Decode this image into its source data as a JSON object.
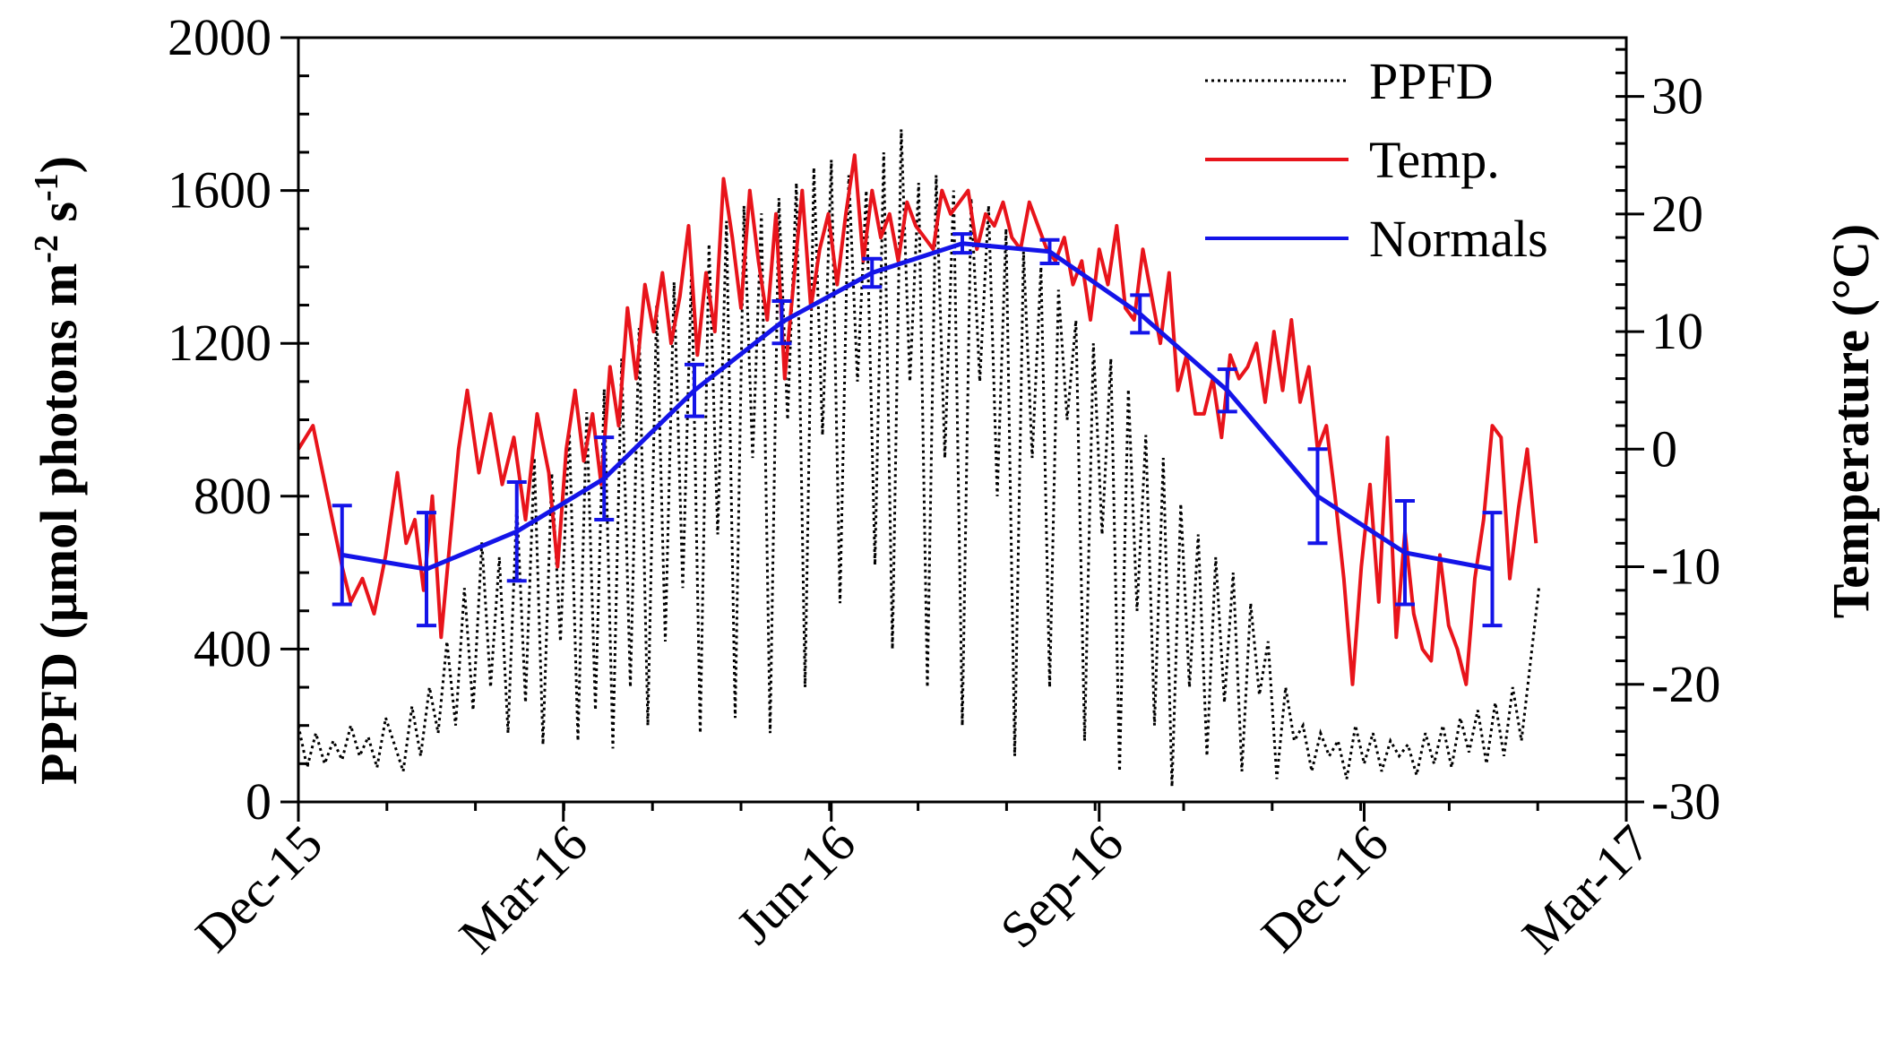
{
  "chart_data": {
    "type": "line",
    "title": "",
    "xlabel": "",
    "ylabel": "PPFD (μmol photons m⁻² s⁻¹)",
    "ylabel_parts": {
      "base": "PPFD (μmol photons m",
      "exp1": "-2",
      "mid": " s",
      "exp2": "-1",
      "end": ")"
    },
    "y2label": "Temperature (°C)",
    "x_tick_labels": [
      "Dec-15",
      "Mar-16",
      "Jun-16",
      "Sep-16",
      "Dec-16",
      "Mar-17"
    ],
    "x_tick_days": [
      0,
      91,
      183,
      275,
      366,
      456
    ],
    "xlim_days": [
      0,
      456
    ],
    "x_minor_step_days": 30.4,
    "ylim": [
      0,
      2000
    ],
    "y_ticks": [
      0,
      400,
      800,
      1200,
      1600,
      2000
    ],
    "y_tick_labels": [
      "0",
      "400",
      "800",
      "1200",
      "1600",
      "2000"
    ],
    "y2lim": [
      -30,
      35
    ],
    "y2_ticks": [
      -30,
      -20,
      -10,
      0,
      10,
      20,
      30
    ],
    "y2_tick_labels": [
      "-30",
      "-20",
      "-10",
      "0",
      "10",
      "20",
      "30"
    ],
    "legend": {
      "position": "top-right",
      "entries": [
        {
          "label": "PPFD",
          "color": "#000000",
          "style": "dotted"
        },
        {
          "label": "Temp.",
          "color": "#e8141b",
          "style": "solid"
        },
        {
          "label": "Normals",
          "color": "#1414e8",
          "style": "solid"
        }
      ]
    },
    "series": [
      {
        "name": "Normals",
        "axis": "right",
        "color": "#1414e8",
        "x_days": [
          15,
          44,
          75,
          105,
          136,
          166,
          197,
          228,
          258,
          289,
          319,
          350,
          380,
          410
        ],
        "values": [
          -9.0,
          -10.2,
          -7.0,
          -2.5,
          5.0,
          10.8,
          15.0,
          17.5,
          16.8,
          11.5,
          5.0,
          -4.0,
          -8.8,
          -10.2
        ],
        "err": [
          4.2,
          4.8,
          4.2,
          3.5,
          2.2,
          1.8,
          1.2,
          0.8,
          1.0,
          1.6,
          1.8,
          4.0,
          4.4,
          4.8
        ]
      },
      {
        "name": "Temp.",
        "axis": "right",
        "color": "#e8141b",
        "x_days": [
          0,
          5,
          10,
          15,
          18,
          22,
          26,
          30,
          34,
          37,
          40,
          43,
          46,
          49,
          52,
          55,
          58,
          62,
          66,
          70,
          74,
          78,
          82,
          86,
          89,
          92,
          95,
          98,
          101,
          104,
          107,
          110,
          113,
          116,
          119,
          122,
          125,
          128,
          131,
          134,
          137,
          140,
          143,
          146,
          149,
          152,
          155,
          158,
          161,
          164,
          167,
          170,
          173,
          176,
          179,
          182,
          185,
          188,
          191,
          194,
          197,
          200,
          203,
          206,
          209,
          212,
          215,
          218,
          221,
          224,
          227,
          230,
          233,
          236,
          239,
          242,
          245,
          248,
          251,
          254,
          257,
          260,
          263,
          266,
          269,
          272,
          275,
          278,
          281,
          284,
          287,
          290,
          293,
          296,
          299,
          302,
          305,
          308,
          311,
          314,
          317,
          320,
          323,
          326,
          329,
          332,
          335,
          338,
          341,
          344,
          347,
          350,
          353,
          356,
          359,
          362,
          365,
          368,
          371,
          374,
          377,
          380,
          383,
          386,
          389,
          392,
          395,
          398,
          401,
          404,
          407,
          410,
          413,
          416,
          419,
          422,
          425
        ],
        "values": [
          0,
          2,
          -4,
          -10,
          -13,
          -11,
          -14,
          -9,
          -2,
          -8,
          -6,
          -12,
          -4,
          -16,
          -8,
          0,
          5,
          -2,
          3,
          -3,
          1,
          -6,
          3,
          -2,
          -10,
          0,
          5,
          -1,
          3,
          -3,
          7,
          2,
          12,
          6,
          14,
          10,
          15,
          9,
          13,
          19,
          8,
          15,
          10,
          23,
          18,
          12,
          22,
          16,
          11,
          20,
          6,
          14,
          22,
          12,
          17,
          20,
          14,
          20,
          25,
          16,
          22,
          18,
          20,
          16,
          21,
          19,
          18,
          17,
          22,
          20,
          21,
          22,
          17,
          20,
          19,
          21,
          18,
          17,
          21,
          19,
          17,
          16,
          18,
          14,
          16,
          11,
          17,
          14,
          19,
          12,
          11,
          17,
          13,
          9,
          15,
          5,
          8,
          3,
          3,
          6,
          1,
          8,
          6,
          7,
          9,
          4,
          10,
          5,
          11,
          4,
          7,
          0,
          2,
          -4,
          -11,
          -20,
          -10,
          -3,
          -13,
          1,
          -16,
          -7,
          -14,
          -17,
          -18,
          -9,
          -15,
          -17,
          -20,
          -11,
          -6,
          2,
          1,
          -11,
          -5,
          0,
          -8
        ],
        "note": "approximate daily mean temperature read from plot"
      },
      {
        "name": "PPFD",
        "axis": "left",
        "color": "#000000",
        "x_days": [
          0,
          3,
          6,
          9,
          12,
          15,
          18,
          21,
          24,
          27,
          30,
          33,
          36,
          39,
          42,
          45,
          48,
          51,
          54,
          57,
          60,
          63,
          66,
          69,
          72,
          75,
          78,
          81,
          84,
          87,
          90,
          93,
          96,
          99,
          102,
          105,
          108,
          111,
          114,
          117,
          120,
          123,
          126,
          129,
          132,
          135,
          138,
          141,
          144,
          147,
          150,
          153,
          156,
          159,
          162,
          165,
          168,
          171,
          174,
          177,
          180,
          183,
          186,
          189,
          192,
          195,
          198,
          201,
          204,
          207,
          210,
          213,
          216,
          219,
          222,
          225,
          228,
          231,
          234,
          237,
          240,
          243,
          246,
          249,
          252,
          255,
          258,
          261,
          264,
          267,
          270,
          273,
          276,
          279,
          282,
          285,
          288,
          291,
          294,
          297,
          300,
          303,
          306,
          309,
          312,
          315,
          318,
          321,
          324,
          327,
          330,
          333,
          336,
          339,
          342,
          345,
          348,
          351,
          354,
          357,
          360,
          363,
          366,
          369,
          372,
          375,
          378,
          381,
          384,
          387,
          390,
          393,
          396,
          399,
          402,
          405,
          408,
          411,
          414,
          417,
          420,
          423,
          426
        ],
        "values": [
          200,
          90,
          180,
          100,
          160,
          110,
          200,
          120,
          170,
          90,
          220,
          150,
          80,
          250,
          120,
          300,
          180,
          420,
          200,
          560,
          240,
          680,
          300,
          640,
          180,
          780,
          260,
          900,
          150,
          860,
          420,
          980,
          160,
          1020,
          240,
          1080,
          140,
          1160,
          300,
          1240,
          200,
          1300,
          420,
          1360,
          560,
          1400,
          180,
          1460,
          700,
          1520,
          220,
          1560,
          900,
          1540,
          180,
          1580,
          1000,
          1620,
          300,
          1660,
          960,
          1680,
          520,
          1640,
          1100,
          1600,
          620,
          1700,
          400,
          1760,
          1100,
          1620,
          300,
          1640,
          900,
          1600,
          200,
          1580,
          1100,
          1560,
          800,
          1500,
          120,
          1440,
          900,
          1400,
          300,
          1340,
          1000,
          1260,
          160,
          1200,
          700,
          1160,
          80,
          1080,
          500,
          960,
          200,
          900,
          40,
          780,
          300,
          700,
          120,
          640,
          260,
          600,
          80,
          520,
          280,
          420,
          60,
          300,
          160,
          200,
          80,
          180,
          120,
          160,
          60,
          200,
          100,
          180,
          80,
          160,
          120,
          150,
          70,
          180,
          100,
          200,
          90,
          220,
          130,
          240,
          100,
          260,
          120,
          300,
          160,
          360,
          560
        ],
        "note": "approximate daily PPFD envelope read from plot"
      }
    ]
  }
}
